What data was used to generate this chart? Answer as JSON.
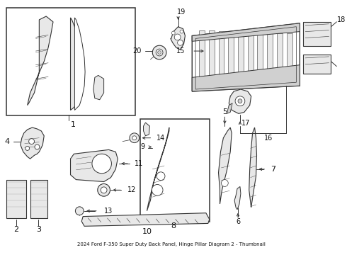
{
  "title": "2024 Ford F-350 Super Duty Back Panel, Hinge Pillar Diagram 2 - Thumbnail",
  "bg": "#ffffff",
  "lc": "#333333",
  "fig_w": 4.9,
  "fig_h": 3.6,
  "dpi": 100
}
